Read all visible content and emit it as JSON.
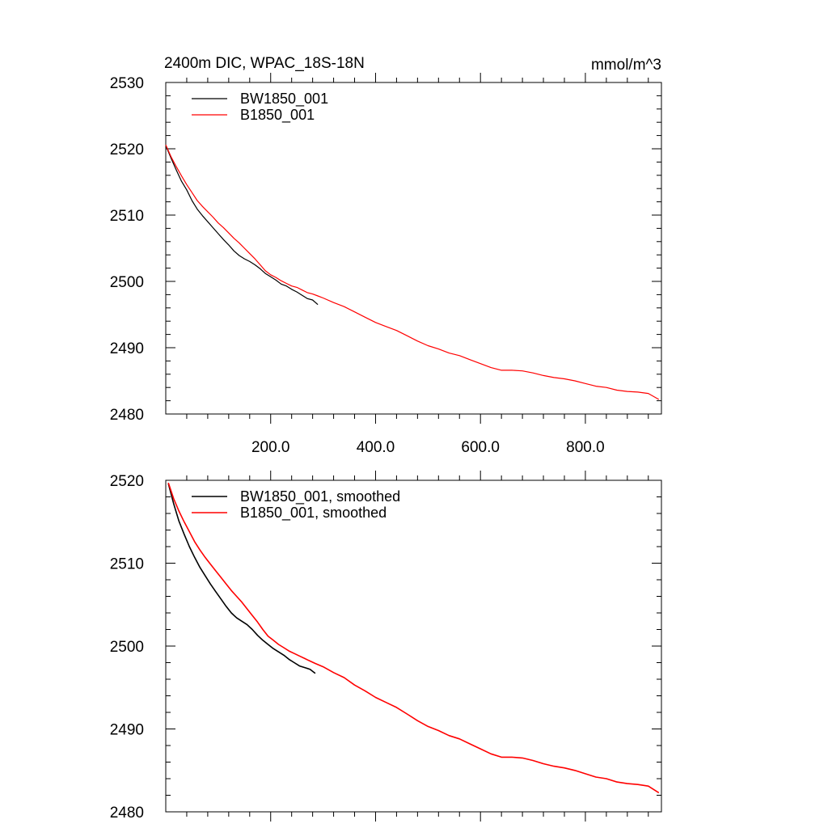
{
  "figure": {
    "title": "2400m DIC, WPAC_18S-18N",
    "units": "mmol/m^3"
  },
  "colors": {
    "bw": "#000000",
    "b": "#ff0000"
  },
  "chart_data": [
    {
      "type": "line",
      "title": "2400m DIC, WPAC_18S-18N",
      "units": "mmol/m^3",
      "xlim": [
        0,
        945
      ],
      "ylim": [
        2480,
        2530
      ],
      "x_ticks": [
        200,
        400,
        600,
        800
      ],
      "x_tick_labels": [
        "200.0",
        "400.0",
        "600.0",
        "800.0"
      ],
      "y_ticks": [
        2480,
        2490,
        2500,
        2510,
        2520,
        2530
      ],
      "y_tick_labels": [
        "2480",
        "2490",
        "2500",
        "2510",
        "2520",
        "2530"
      ],
      "legend_position": "top-left",
      "series": [
        {
          "name": "BW1850_001",
          "color": "#000000",
          "x": [
            0,
            10,
            20,
            30,
            40,
            50,
            60,
            70,
            80,
            90,
            100,
            110,
            120,
            130,
            140,
            150,
            160,
            170,
            180,
            190,
            200,
            210,
            220,
            230,
            240,
            250,
            260,
            270,
            280,
            290
          ],
          "y": [
            2520.5,
            2518.6,
            2516.8,
            2515.1,
            2513.8,
            2512.2,
            2510.9,
            2509.9,
            2509.0,
            2508.1,
            2507.2,
            2506.3,
            2505.5,
            2504.6,
            2503.9,
            2503.4,
            2503.0,
            2502.5,
            2501.9,
            2501.2,
            2500.7,
            2500.2,
            2499.6,
            2499.3,
            2498.8,
            2498.4,
            2497.9,
            2497.4,
            2497.2,
            2496.5
          ]
        },
        {
          "name": "B1850_001",
          "color": "#ff0000",
          "x": [
            0,
            10,
            20,
            30,
            40,
            50,
            60,
            70,
            80,
            90,
            100,
            110,
            120,
            130,
            140,
            150,
            160,
            170,
            180,
            190,
            200,
            210,
            220,
            230,
            240,
            250,
            260,
            270,
            280,
            290,
            300,
            320,
            340,
            360,
            380,
            400,
            420,
            440,
            460,
            480,
            500,
            520,
            540,
            560,
            580,
            600,
            620,
            640,
            660,
            680,
            700,
            720,
            740,
            760,
            780,
            800,
            820,
            840,
            860,
            880,
            900,
            920,
            940
          ],
          "y": [
            2520.6,
            2518.8,
            2517.3,
            2515.9,
            2514.6,
            2513.4,
            2512.2,
            2511.3,
            2510.5,
            2509.7,
            2508.8,
            2508.1,
            2507.3,
            2506.5,
            2505.8,
            2505.0,
            2504.2,
            2503.4,
            2502.5,
            2501.6,
            2501.0,
            2500.6,
            2500.1,
            2499.7,
            2499.3,
            2499.1,
            2498.7,
            2498.3,
            2498.1,
            2497.8,
            2497.5,
            2496.8,
            2496.2,
            2495.4,
            2494.6,
            2493.8,
            2493.2,
            2492.6,
            2491.8,
            2491.0,
            2490.3,
            2489.8,
            2489.2,
            2488.8,
            2488.2,
            2487.6,
            2487.0,
            2486.6,
            2486.6,
            2486.5,
            2486.2,
            2485.8,
            2485.5,
            2485.3,
            2485.0,
            2484.6,
            2484.2,
            2484.0,
            2483.6,
            2483.4,
            2483.3,
            2483.1,
            2482.2
          ]
        }
      ]
    },
    {
      "type": "line",
      "xlim": [
        0,
        945
      ],
      "ylim": [
        2480,
        2520
      ],
      "x_ticks": [
        200,
        400,
        600,
        800
      ],
      "y_ticks": [
        2480,
        2490,
        2500,
        2510,
        2520
      ],
      "y_tick_labels": [
        "2480",
        "2490",
        "2500",
        "2510",
        "2520"
      ],
      "legend_position": "top-left",
      "series": [
        {
          "name": "BW1850_001, smoothed",
          "color": "#000000",
          "x": [
            5,
            15,
            25,
            35,
            45,
            55,
            65,
            75,
            85,
            95,
            105,
            115,
            125,
            135,
            145,
            155,
            165,
            175,
            185,
            195,
            205,
            215,
            225,
            235,
            245,
            255,
            265,
            275,
            285
          ],
          "y": [
            2519.6,
            2517.2,
            2515.1,
            2513.5,
            2512.0,
            2510.7,
            2509.5,
            2508.5,
            2507.5,
            2506.6,
            2505.7,
            2504.8,
            2504.0,
            2503.4,
            2503.0,
            2502.6,
            2502.0,
            2501.3,
            2500.7,
            2500.2,
            2499.7,
            2499.3,
            2498.9,
            2498.4,
            2498.0,
            2497.6,
            2497.4,
            2497.2,
            2496.7
          ]
        },
        {
          "name": "B1850_001, smoothed",
          "color": "#ff0000",
          "x": [
            5,
            15,
            25,
            35,
            45,
            55,
            65,
            75,
            85,
            95,
            105,
            115,
            125,
            135,
            145,
            155,
            165,
            175,
            185,
            195,
            205,
            215,
            225,
            235,
            245,
            255,
            265,
            275,
            285,
            300,
            320,
            340,
            360,
            380,
            400,
            420,
            440,
            460,
            480,
            500,
            520,
            540,
            560,
            580,
            600,
            620,
            640,
            660,
            680,
            700,
            720,
            740,
            760,
            780,
            800,
            820,
            840,
            860,
            880,
            900,
            920,
            940
          ],
          "y": [
            2519.7,
            2517.8,
            2516.3,
            2515.0,
            2513.8,
            2512.6,
            2511.6,
            2510.7,
            2509.9,
            2509.1,
            2508.3,
            2507.5,
            2506.7,
            2506.0,
            2505.3,
            2504.5,
            2503.7,
            2502.9,
            2502.0,
            2501.2,
            2500.7,
            2500.2,
            2499.8,
            2499.4,
            2499.1,
            2498.8,
            2498.5,
            2498.2,
            2497.9,
            2497.5,
            2496.8,
            2496.2,
            2495.3,
            2494.6,
            2493.8,
            2493.2,
            2492.6,
            2491.8,
            2491.0,
            2490.3,
            2489.8,
            2489.2,
            2488.8,
            2488.2,
            2487.6,
            2487.0,
            2486.6,
            2486.6,
            2486.5,
            2486.2,
            2485.8,
            2485.5,
            2485.3,
            2485.0,
            2484.6,
            2484.2,
            2484.0,
            2483.6,
            2483.4,
            2483.3,
            2483.1,
            2482.3
          ]
        }
      ]
    }
  ]
}
